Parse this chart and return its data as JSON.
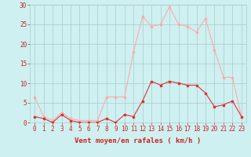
{
  "hours": [
    0,
    1,
    2,
    3,
    4,
    5,
    6,
    7,
    8,
    9,
    10,
    11,
    12,
    13,
    14,
    15,
    16,
    17,
    18,
    19,
    20,
    21,
    22,
    23
  ],
  "wind_avg": [
    1.5,
    1,
    0,
    2,
    0.5,
    0,
    0,
    0,
    1,
    0,
    2,
    1.5,
    5.5,
    10.5,
    9.5,
    10.5,
    10,
    9.5,
    9.5,
    7.5,
    4,
    4.5,
    5.5,
    1.5
  ],
  "wind_gust": [
    6.5,
    1.5,
    0.5,
    2.5,
    1,
    0.5,
    0.5,
    0.5,
    6.5,
    6.5,
    6.5,
    18,
    27,
    24.5,
    25,
    29.5,
    25,
    24.5,
    23,
    26.5,
    18.5,
    11.5,
    11.5,
    1.5
  ],
  "avg_color": "#dd3333",
  "gust_color": "#ffaaaa",
  "bg_color": "#cef0f0",
  "grid_color": "#aacccc",
  "axis_color": "#cc2222",
  "xlabel": "Vent moyen/en rafales ( km/h )",
  "ylim": [
    0,
    30
  ],
  "yticks": [
    0,
    5,
    10,
    15,
    20,
    25,
    30
  ],
  "tick_fontsize": 5.5,
  "label_fontsize": 6.5
}
